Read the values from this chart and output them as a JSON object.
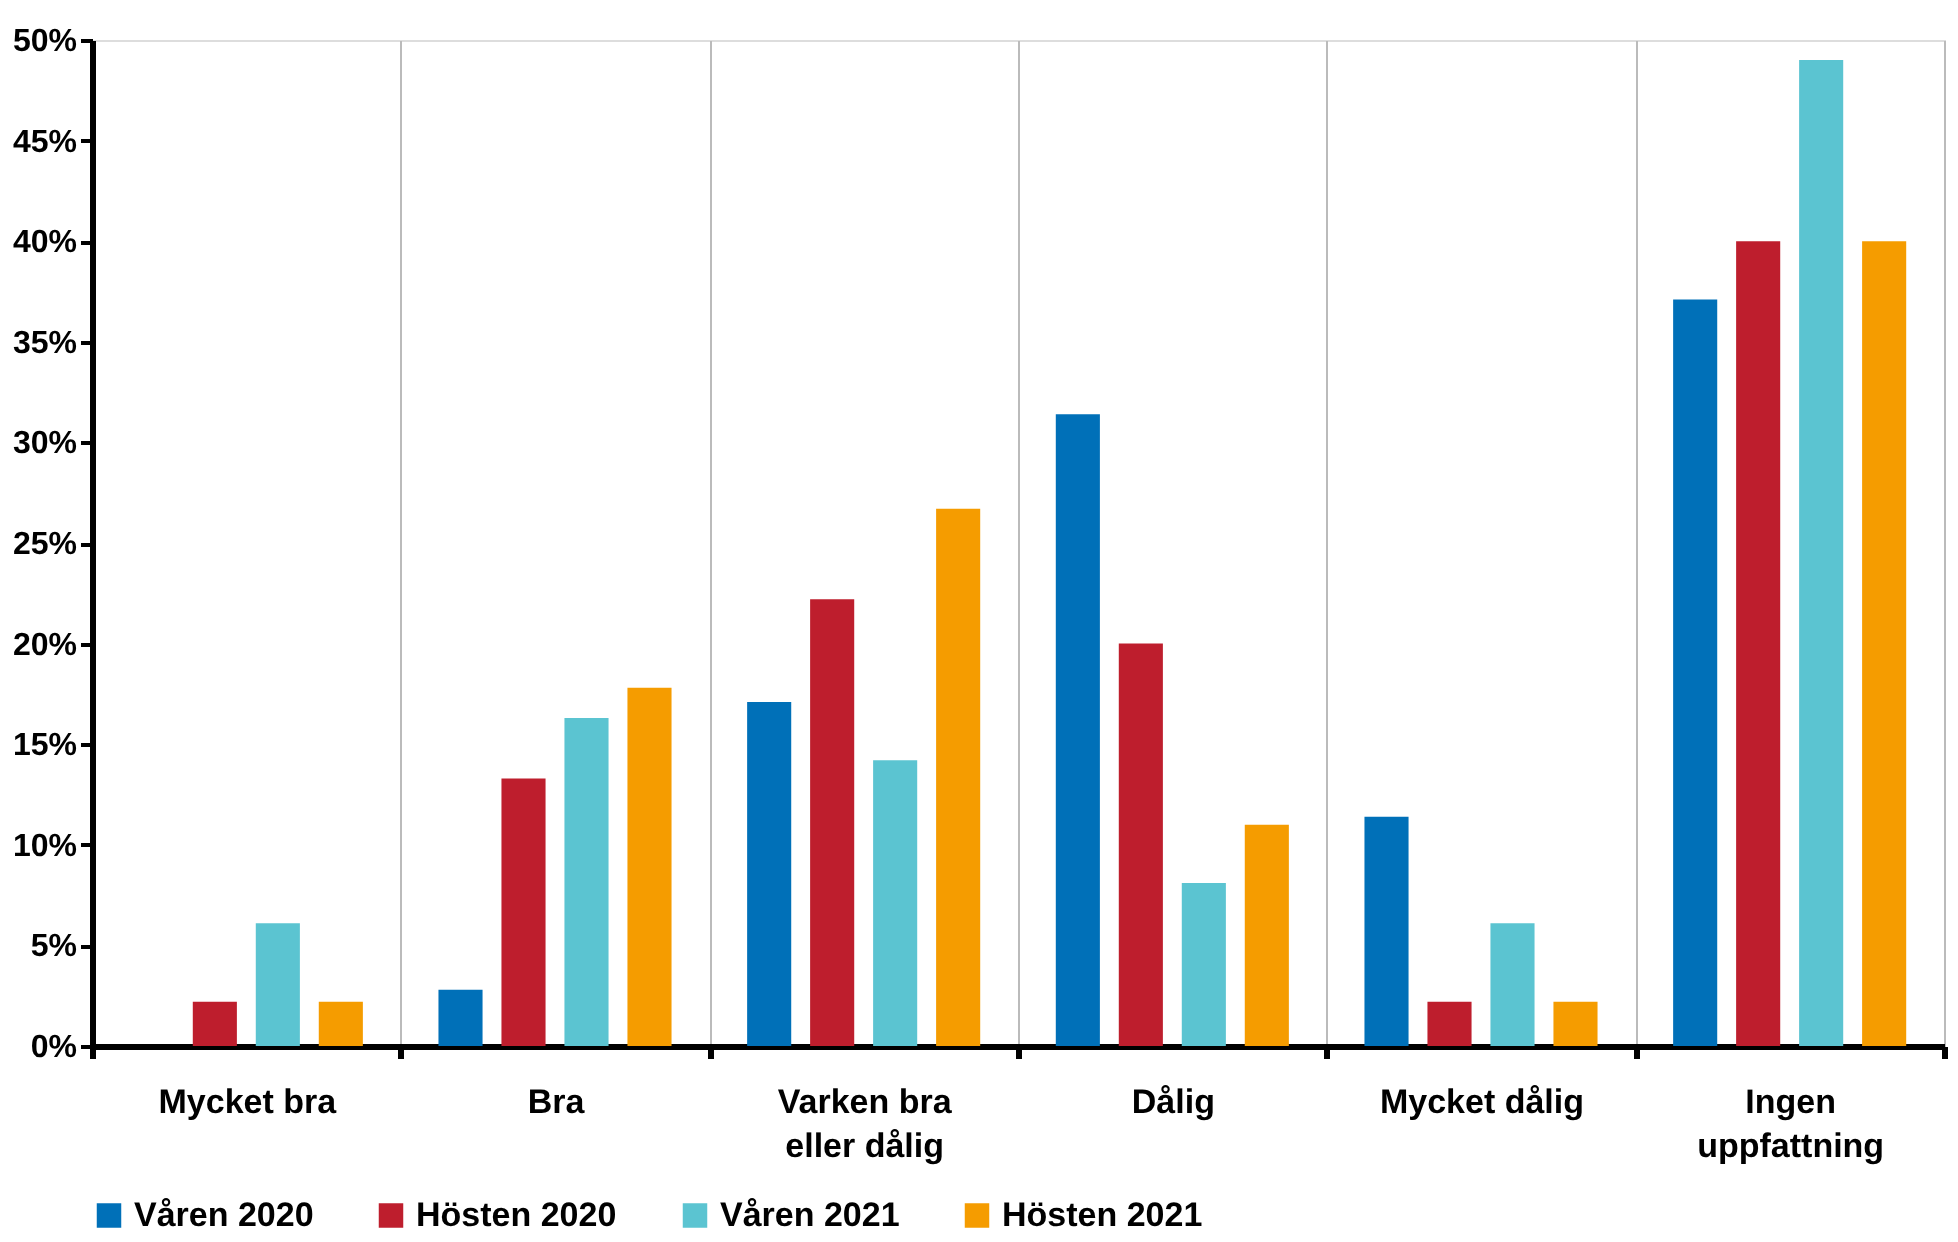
{
  "chart_data": {
    "type": "bar",
    "categories": [
      "Mycket bra",
      "Bra",
      "Varken bra\neller dålig",
      "Dålig",
      "Mycket dålig",
      "Ingen\nuppfattning"
    ],
    "series": [
      {
        "name": "Våren 2020",
        "color": "#0070b8",
        "values": [
          0,
          2.8,
          17.1,
          31.4,
          11.4,
          37.1
        ]
      },
      {
        "name": "Hösten 2020",
        "color": "#be1e2d",
        "values": [
          2.2,
          13.3,
          22.2,
          20.0,
          2.2,
          40.0
        ]
      },
      {
        "name": "Våren 2021",
        "color": "#5bc4d1",
        "values": [
          6.1,
          16.3,
          14.2,
          8.1,
          6.1,
          49.0
        ]
      },
      {
        "name": "Hösten 2021",
        "color": "#f59c00",
        "values": [
          2.2,
          17.8,
          26.7,
          11.0,
          2.2,
          40.0
        ]
      }
    ],
    "ylim": [
      0,
      50
    ],
    "yticks": [
      {
        "value": 0,
        "label": "0%"
      },
      {
        "value": 5,
        "label": "5%"
      },
      {
        "value": 10,
        "label": "10%"
      },
      {
        "value": 15,
        "label": "15%"
      },
      {
        "value": 20,
        "label": "20%"
      },
      {
        "value": 25,
        "label": "25%"
      },
      {
        "value": 30,
        "label": "30%"
      },
      {
        "value": 35,
        "label": "35%"
      },
      {
        "value": 40,
        "label": "40%"
      },
      {
        "value": 45,
        "label": "45%"
      },
      {
        "value": 50,
        "label": "50%"
      }
    ],
    "grid": "x",
    "legend": "bottom"
  }
}
